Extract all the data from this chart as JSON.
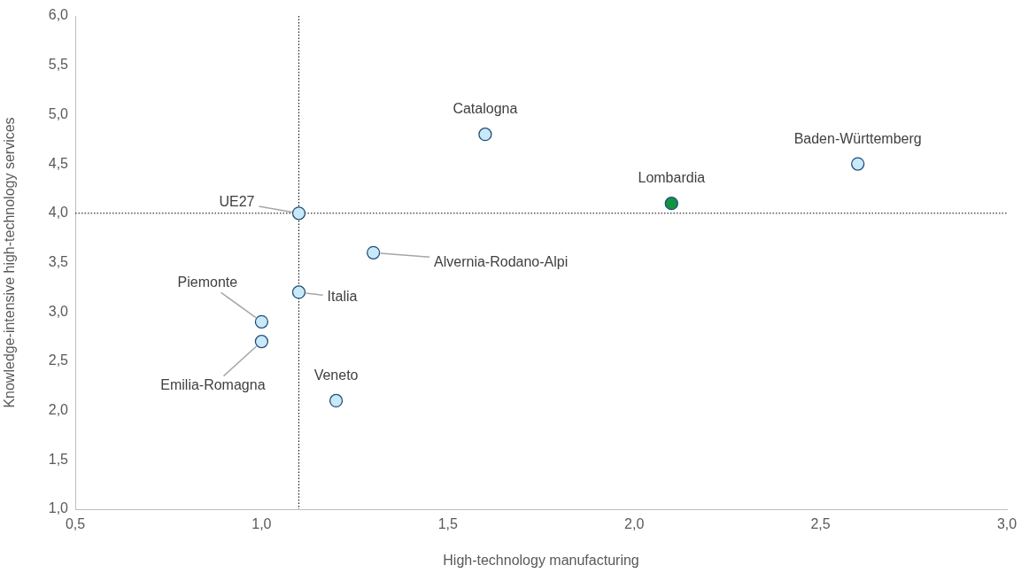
{
  "chart_data": {
    "type": "scatter",
    "xlabel": "High-technology manufacturing",
    "ylabel": "Knowledge-intensive high-technology services",
    "x": [
      1.6,
      2.6,
      2.1,
      1.1,
      1.3,
      1.1,
      1.0,
      1.0,
      1.2
    ],
    "values": [
      4.8,
      4.5,
      4.1,
      4.0,
      3.6,
      3.2,
      2.9,
      2.7,
      2.1
    ],
    "colors": [
      "#c9e9f8",
      "#c9e9f8",
      "#11943f",
      "#c9e9f8",
      "#c9e9f8",
      "#c9e9f8",
      "#c9e9f8",
      "#c9e9f8",
      "#c9e9f8"
    ],
    "marker": "circle",
    "xlim": [
      0.5,
      3.0
    ],
    "xticks": [
      {
        "value": 0.5,
        "label": "0,5"
      },
      {
        "value": 1.0,
        "label": "1,0"
      },
      {
        "value": 1.5,
        "label": "1,5"
      },
      {
        "value": 2.0,
        "label": "2,0"
      },
      {
        "value": 2.5,
        "label": "2,5"
      },
      {
        "value": 3.0,
        "label": "3,0"
      }
    ],
    "ylim": [
      1.0,
      6.0
    ],
    "yticks": [
      {
        "value": 1.0,
        "label": "1,0"
      },
      {
        "value": 1.5,
        "label": "1,5"
      },
      {
        "value": 2.0,
        "label": "2,0"
      },
      {
        "value": 2.5,
        "label": "2,5"
      },
      {
        "value": 3.0,
        "label": "3,0"
      },
      {
        "value": 3.5,
        "label": "3,5"
      },
      {
        "value": 4.0,
        "label": "4,0"
      },
      {
        "value": 4.5,
        "label": "4,5"
      },
      {
        "value": 5.0,
        "label": "5,0"
      },
      {
        "value": 5.5,
        "label": "5,5"
      },
      {
        "value": 6.0,
        "label": "6,0"
      }
    ],
    "ref_lines": [
      {
        "axis": "x",
        "value": 1.1,
        "line_style": "dotted",
        "color": "#000000"
      },
      {
        "axis": "y",
        "value": 4.0,
        "line_style": "dotted",
        "color": "#000000"
      }
    ],
    "annotations": [
      {
        "text": "Catalogna",
        "x": 1.6,
        "y": 4.8
      },
      {
        "text": "Baden-Württemberg",
        "x": 2.6,
        "y": 4.5
      },
      {
        "text": "Lombardia",
        "x": 2.1,
        "y": 4.1
      },
      {
        "text": "UE27",
        "x": 1.1,
        "y": 4.0
      },
      {
        "text": "Alvernia-Rodano-Alpi",
        "x": 1.3,
        "y": 3.6
      },
      {
        "text": "Italia",
        "x": 1.1,
        "y": 3.2
      },
      {
        "text": "Piemonte",
        "x": 1.0,
        "y": 2.9
      },
      {
        "text": "Emilia-Romagna",
        "x": 1.0,
        "y": 2.7
      },
      {
        "text": "Veneto",
        "x": 1.2,
        "y": 2.1
      }
    ],
    "grid": false,
    "legend": false
  }
}
